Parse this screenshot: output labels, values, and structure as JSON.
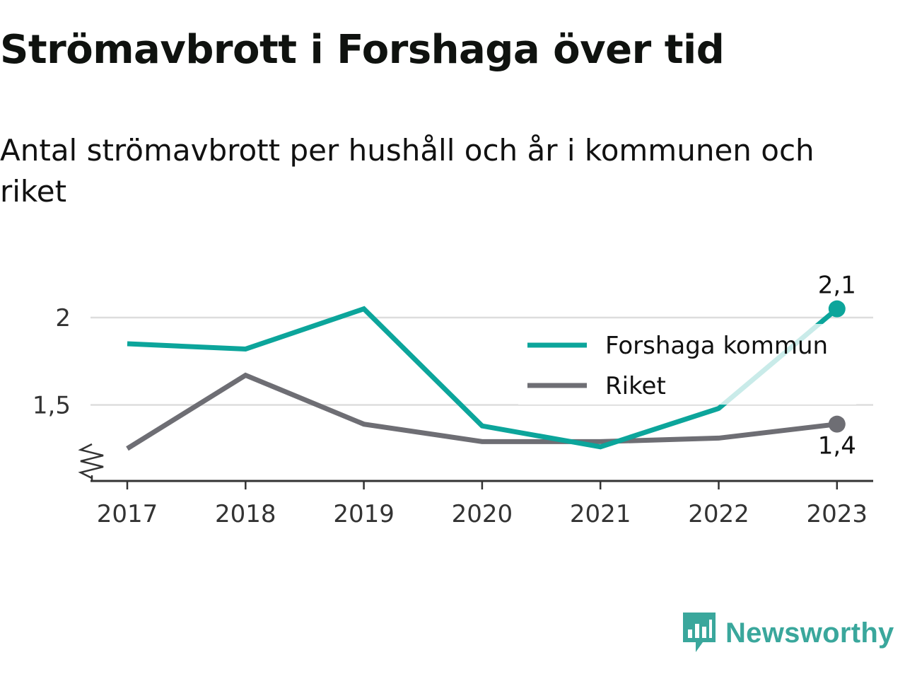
{
  "title": "Strömavbrott i Forshaga över tid",
  "subtitle": "Antal strömavbrott per hushåll och år i kommunen och riket",
  "brand": {
    "name": "Newsworthy",
    "icon": "newsworthy-logo-icon"
  },
  "colors": {
    "forshaga": "#0ca59b",
    "riket": "#6e6e74",
    "grid": "#dddddd",
    "axis": "#333333",
    "brand": "#3aa79c"
  },
  "chart_data": {
    "type": "line",
    "x": [
      "2017",
      "2018",
      "2019",
      "2020",
      "2021",
      "2022",
      "2023"
    ],
    "yticks": [
      {
        "value": 1.5,
        "label": "1,5"
      },
      {
        "value": 2,
        "label": "2"
      }
    ],
    "ylim": [
      1.07,
      2.08
    ],
    "y_axis_break": true,
    "grid": true,
    "legend": "top-right",
    "series": [
      {
        "name": "Forshaga kommun",
        "color": "#0ca59b",
        "values": [
          1.85,
          1.82,
          2.05,
          1.38,
          1.26,
          1.48,
          2.05
        ],
        "end_label": "2,1"
      },
      {
        "name": "Riket",
        "color": "#6e6e74",
        "values": [
          1.25,
          1.67,
          1.39,
          1.29,
          1.29,
          1.31,
          1.39
        ],
        "end_label": "1,4"
      }
    ]
  }
}
